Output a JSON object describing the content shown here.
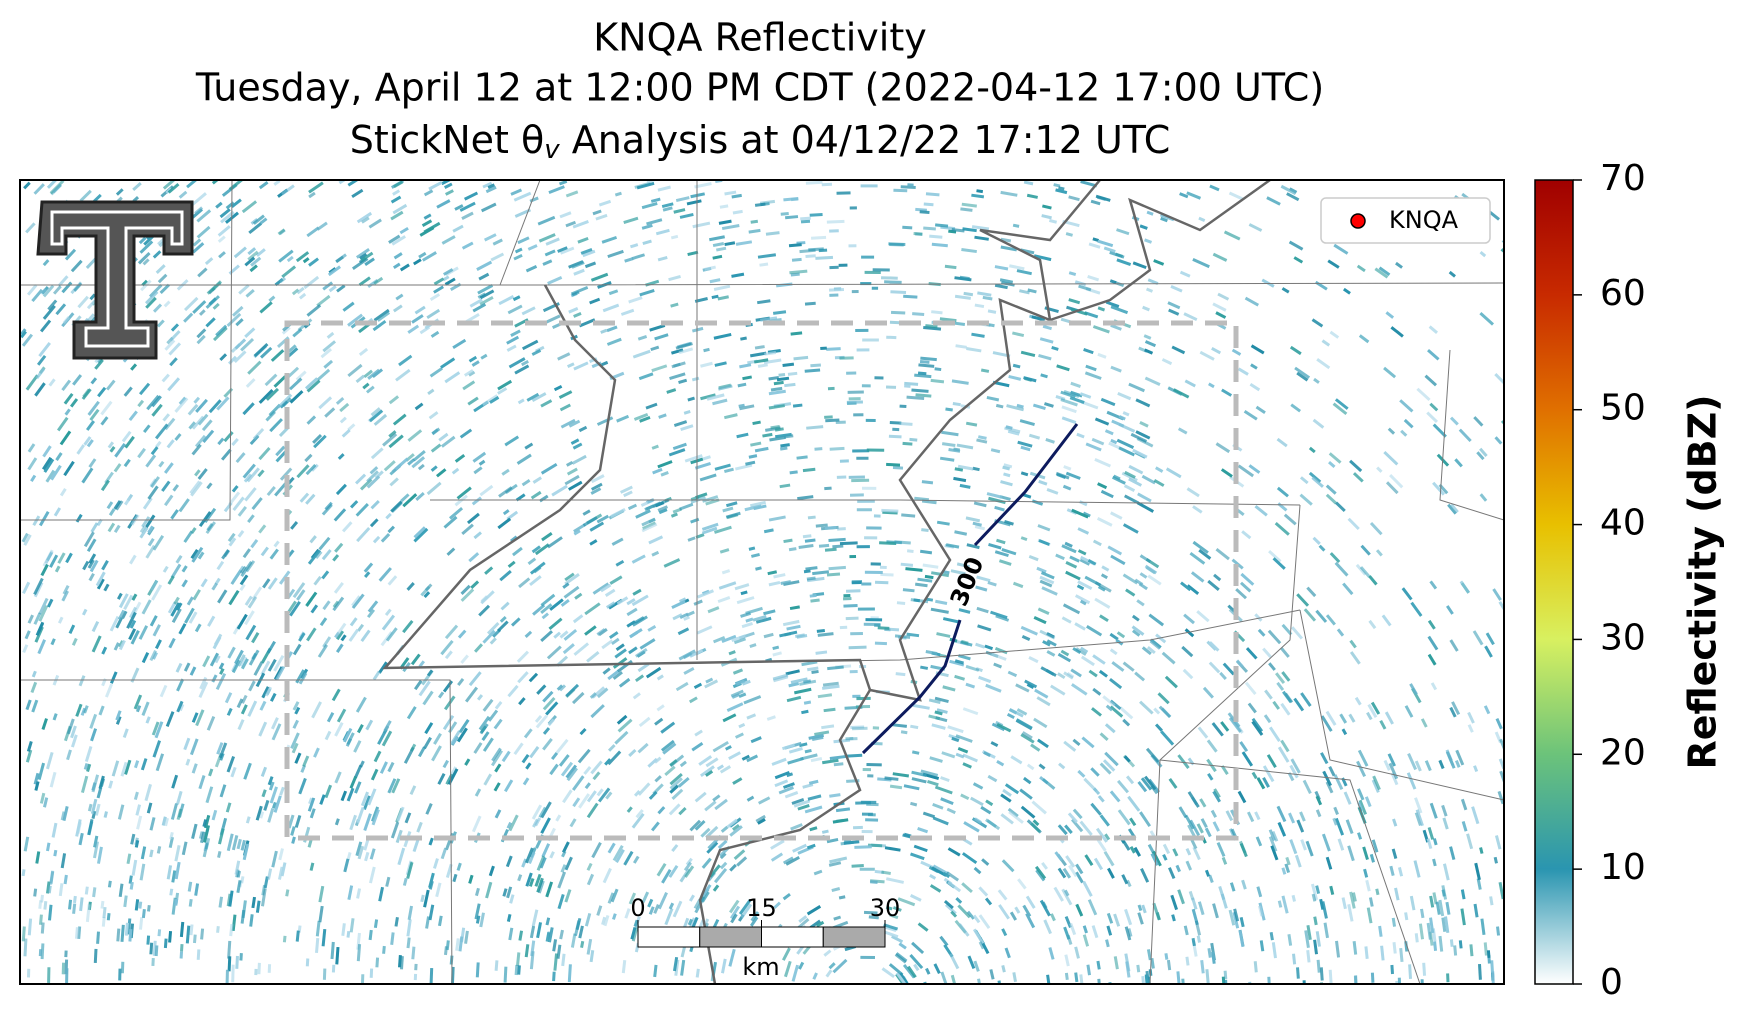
{
  "map": {
    "title": "KNQA Reflectivity",
    "subtitle": "Tuesday, April 12 at 12:00 PM CDT (2022-04-12 17:00 UTC)",
    "analysis": {
      "prefix": "StickNet θ",
      "sub": "v",
      "suffix": " Analysis at 04/12/22 17:12 UTC"
    },
    "legend": {
      "label": "KNQA",
      "color": "#ff0000"
    },
    "contour": {
      "label": "300",
      "color": "#0d1b5e"
    },
    "scalebar": {
      "ticks": [
        0,
        15,
        30
      ],
      "unit": "km"
    },
    "colorbar": {
      "label": "Reflectivity (dBZ)",
      "lim": [
        0,
        70
      ],
      "ticks": [
        0,
        10,
        20,
        30,
        40,
        50,
        60,
        70
      ]
    }
  }
}
